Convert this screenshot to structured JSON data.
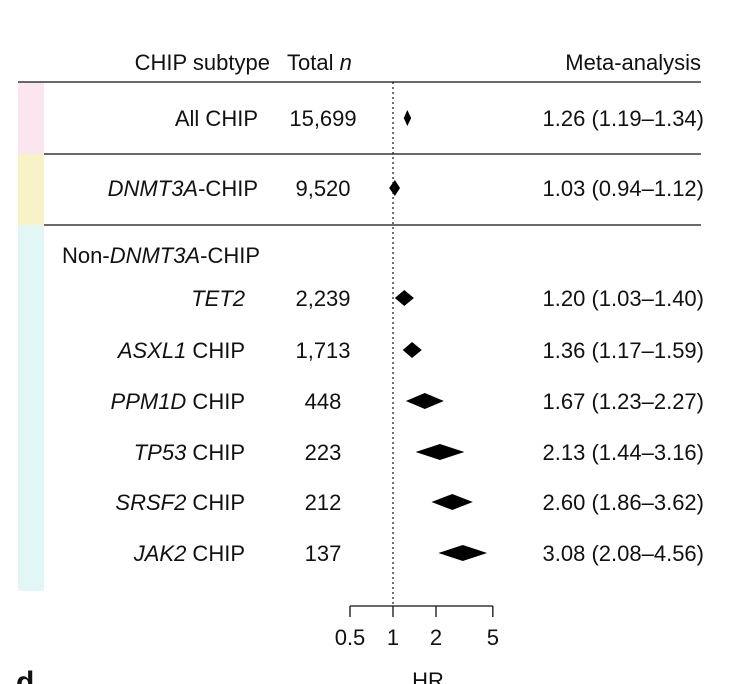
{
  "header": {
    "subtype": "CHIP subtype",
    "total_prefix": "Total ",
    "total_var": "n",
    "meta": "Meta-analysis"
  },
  "colors": {
    "band_all": "#fbe6f0",
    "band_dnmt3a": "#f7f3c6",
    "band_non_dnmt3a": "#e2f6f6",
    "marker": "#000000"
  },
  "group_label": {
    "prefix": "Non-",
    "gene": "DNMT3A",
    "suffix": "-CHIP"
  },
  "chart_data": {
    "type": "forest",
    "xscale": "log",
    "xlabel": "HR",
    "xticks": [
      0.5,
      1,
      2,
      5
    ],
    "xlim": [
      0.5,
      5
    ],
    "reference_line": 1,
    "rows": [
      {
        "group": "all",
        "gene": "",
        "suffix": "All CHIP",
        "n": "15,699",
        "hr": 1.26,
        "lo": 1.19,
        "hi": 1.34,
        "ci_text": "1.26 (1.19–1.34)"
      },
      {
        "group": "dnmt3a",
        "gene": "DNMT3A",
        "suffix": "-CHIP",
        "n": "9,520",
        "hr": 1.03,
        "lo": 0.94,
        "hi": 1.12,
        "ci_text": "1.03 (0.94–1.12)"
      },
      {
        "group": "non_dnmt3a",
        "gene": "TET2",
        "suffix": "",
        "n": "2,239",
        "hr": 1.2,
        "lo": 1.03,
        "hi": 1.4,
        "ci_text": "1.20 (1.03–1.40)"
      },
      {
        "group": "non_dnmt3a",
        "gene": "ASXL1",
        "suffix": " CHIP",
        "n": "1,713",
        "hr": 1.36,
        "lo": 1.17,
        "hi": 1.59,
        "ci_text": "1.36 (1.17–1.59)"
      },
      {
        "group": "non_dnmt3a",
        "gene": "PPM1D",
        "suffix": " CHIP",
        "n": "448",
        "hr": 1.67,
        "lo": 1.23,
        "hi": 2.27,
        "ci_text": "1.67 (1.23–2.27)"
      },
      {
        "group": "non_dnmt3a",
        "gene": "TP53",
        "suffix": " CHIP",
        "n": "223",
        "hr": 2.13,
        "lo": 1.44,
        "hi": 3.16,
        "ci_text": "2.13 (1.44–3.16)"
      },
      {
        "group": "non_dnmt3a",
        "gene": "SRSF2",
        "suffix": " CHIP",
        "n": "212",
        "hr": 2.6,
        "lo": 1.86,
        "hi": 3.62,
        "ci_text": "2.60 (1.86–3.62)"
      },
      {
        "group": "non_dnmt3a",
        "gene": "JAK2",
        "suffix": " CHIP",
        "n": "137",
        "hr": 3.08,
        "lo": 2.08,
        "hi": 4.56,
        "ci_text": "3.08 (2.08–4.56)"
      }
    ]
  },
  "panel_letter": "d"
}
